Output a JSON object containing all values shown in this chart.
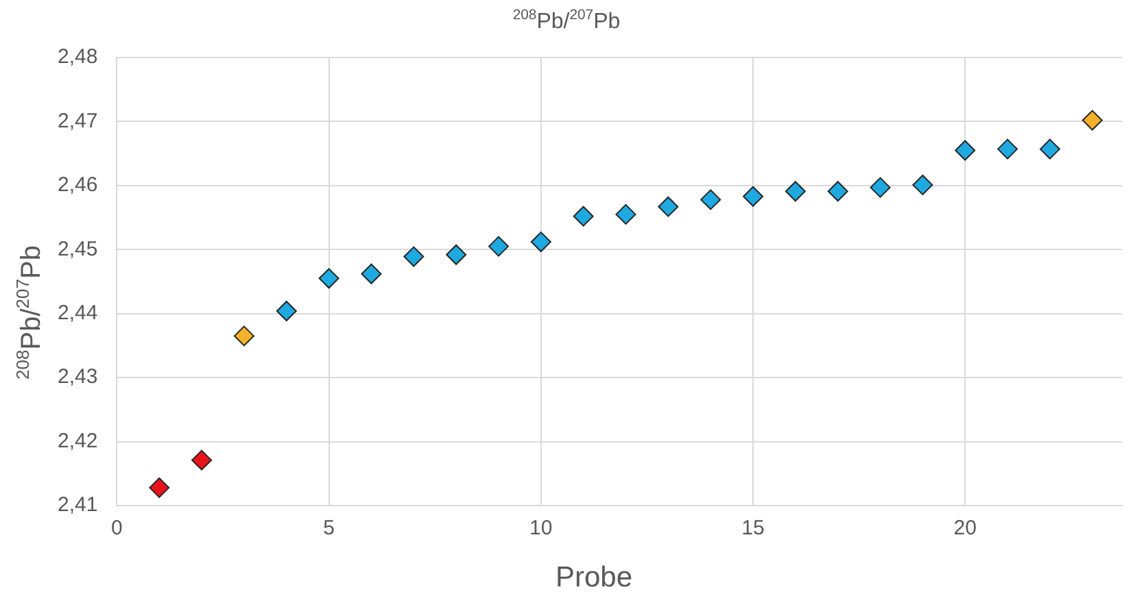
{
  "chart_data": {
    "type": "scatter",
    "title": "$^{208}$Pb/$^{207}$Pb",
    "xlabel": "Probe",
    "ylabel": "$^{208}$Pb/$^{207}$Pb",
    "x": [
      1,
      2,
      3,
      4,
      5,
      6,
      7,
      8,
      9,
      10,
      11,
      12,
      13,
      14,
      15,
      16,
      17,
      18,
      19,
      20,
      21,
      22,
      23
    ],
    "series": [
      {
        "values": [
          2.4128,
          2.4171,
          2.4365,
          2.4404,
          2.4455,
          2.4462,
          2.4489,
          2.4492,
          2.4505,
          2.4512,
          2.4552,
          2.4555,
          2.4567,
          2.4578,
          2.4583,
          2.4591,
          2.4591,
          2.4597,
          2.4601,
          2.4655,
          2.4657,
          2.4657,
          2.4702
        ],
        "colors": [
          "#e8141c",
          "#e8141c",
          "#f5b12b",
          "#1fa9e1",
          "#1fa9e1",
          "#1fa9e1",
          "#1fa9e1",
          "#1fa9e1",
          "#1fa9e1",
          "#1fa9e1",
          "#1fa9e1",
          "#1fa9e1",
          "#1fa9e1",
          "#1fa9e1",
          "#1fa9e1",
          "#1fa9e1",
          "#1fa9e1",
          "#1fa9e1",
          "#1fa9e1",
          "#1fa9e1",
          "#1fa9e1",
          "#1fa9e1",
          "#f5b12b"
        ]
      }
    ],
    "xlim": [
      0,
      23.7
    ],
    "xticks": [
      0,
      5,
      10,
      15,
      20
    ],
    "ylim": [
      2.41,
      2.48
    ],
    "yticks": [
      {
        "value": 2.41,
        "label": "2,41"
      },
      {
        "value": 2.42,
        "label": "2,42"
      },
      {
        "value": 2.43,
        "label": "2,43"
      },
      {
        "value": 2.44,
        "label": "2,44"
      },
      {
        "value": 2.45,
        "label": "2,45"
      },
      {
        "value": 2.46,
        "label": "2,46"
      },
      {
        "value": 2.47,
        "label": "2,47"
      },
      {
        "value": 2.48,
        "label": "2,48"
      }
    ],
    "grid": true,
    "legend": false,
    "marker": "diamond"
  }
}
